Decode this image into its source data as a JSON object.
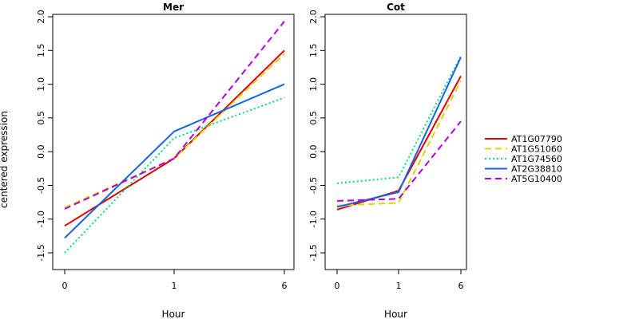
{
  "chart_data": {
    "type": "line",
    "ylabel": "centered expression",
    "xlabel": "Hour",
    "x_categories": [
      "0",
      "1",
      "6"
    ],
    "ylim": [
      -1.6,
      2.05
    ],
    "y_ticks": [
      -1.5,
      -1.0,
      -0.5,
      0.0,
      0.5,
      1.0,
      1.5,
      2.0
    ],
    "y_tick_labels": [
      "-1.5",
      "-1.0",
      "-0.5",
      "0.0",
      "0.5",
      "1.0",
      "1.5",
      "2.0"
    ],
    "grid": false,
    "legend_position": "right",
    "panels": [
      {
        "title": "Mer",
        "series": [
          {
            "name": "AT1G07790",
            "color": "#e00000",
            "dash": "solid",
            "values": [
              -1.1,
              -0.1,
              1.5
            ]
          },
          {
            "name": "AT1G51060",
            "color": "#d8d800",
            "dash": "dashed",
            "values": [
              -0.83,
              -0.1,
              1.45
            ]
          },
          {
            "name": "AT1G74560",
            "color": "#00e070",
            "dash": "dotted",
            "values": [
              -1.5,
              0.2,
              0.8
            ]
          },
          {
            "name": "AT2G38810",
            "color": "#1565e0",
            "dash": "solid",
            "values": [
              -1.28,
              0.3,
              1.0
            ]
          },
          {
            "name": "AT5G10400",
            "color": "#b000e0",
            "dash": "dashed",
            "values": [
              -0.85,
              -0.1,
              1.93
            ]
          }
        ]
      },
      {
        "title": "Cot",
        "series": [
          {
            "name": "AT1G07790",
            "color": "#e00000",
            "dash": "solid",
            "values": [
              -0.86,
              -0.58,
              1.12
            ]
          },
          {
            "name": "AT1G51060",
            "color": "#d8d800",
            "dash": "dashed",
            "values": [
              -0.8,
              -0.76,
              1.05
            ]
          },
          {
            "name": "AT1G74560",
            "color": "#00e070",
            "dash": "dotted",
            "values": [
              -0.47,
              -0.38,
              1.42
            ]
          },
          {
            "name": "AT2G38810",
            "color": "#1565e0",
            "dash": "solid",
            "values": [
              -0.82,
              -0.6,
              1.4
            ]
          },
          {
            "name": "AT5G10400",
            "color": "#b000e0",
            "dash": "dashed",
            "values": [
              -0.73,
              -0.7,
              0.45
            ]
          }
        ]
      }
    ],
    "legend": [
      {
        "name": "AT1G07790",
        "color": "#e00000",
        "dash": "solid"
      },
      {
        "name": "AT1G51060",
        "color": "#d8d800",
        "dash": "dashed"
      },
      {
        "name": "AT1G74560",
        "color": "#00e070",
        "dash": "dotted"
      },
      {
        "name": "AT2G38810",
        "color": "#1565e0",
        "dash": "solid"
      },
      {
        "name": "AT5G10400",
        "color": "#b000e0",
        "dash": "dashed"
      }
    ]
  }
}
